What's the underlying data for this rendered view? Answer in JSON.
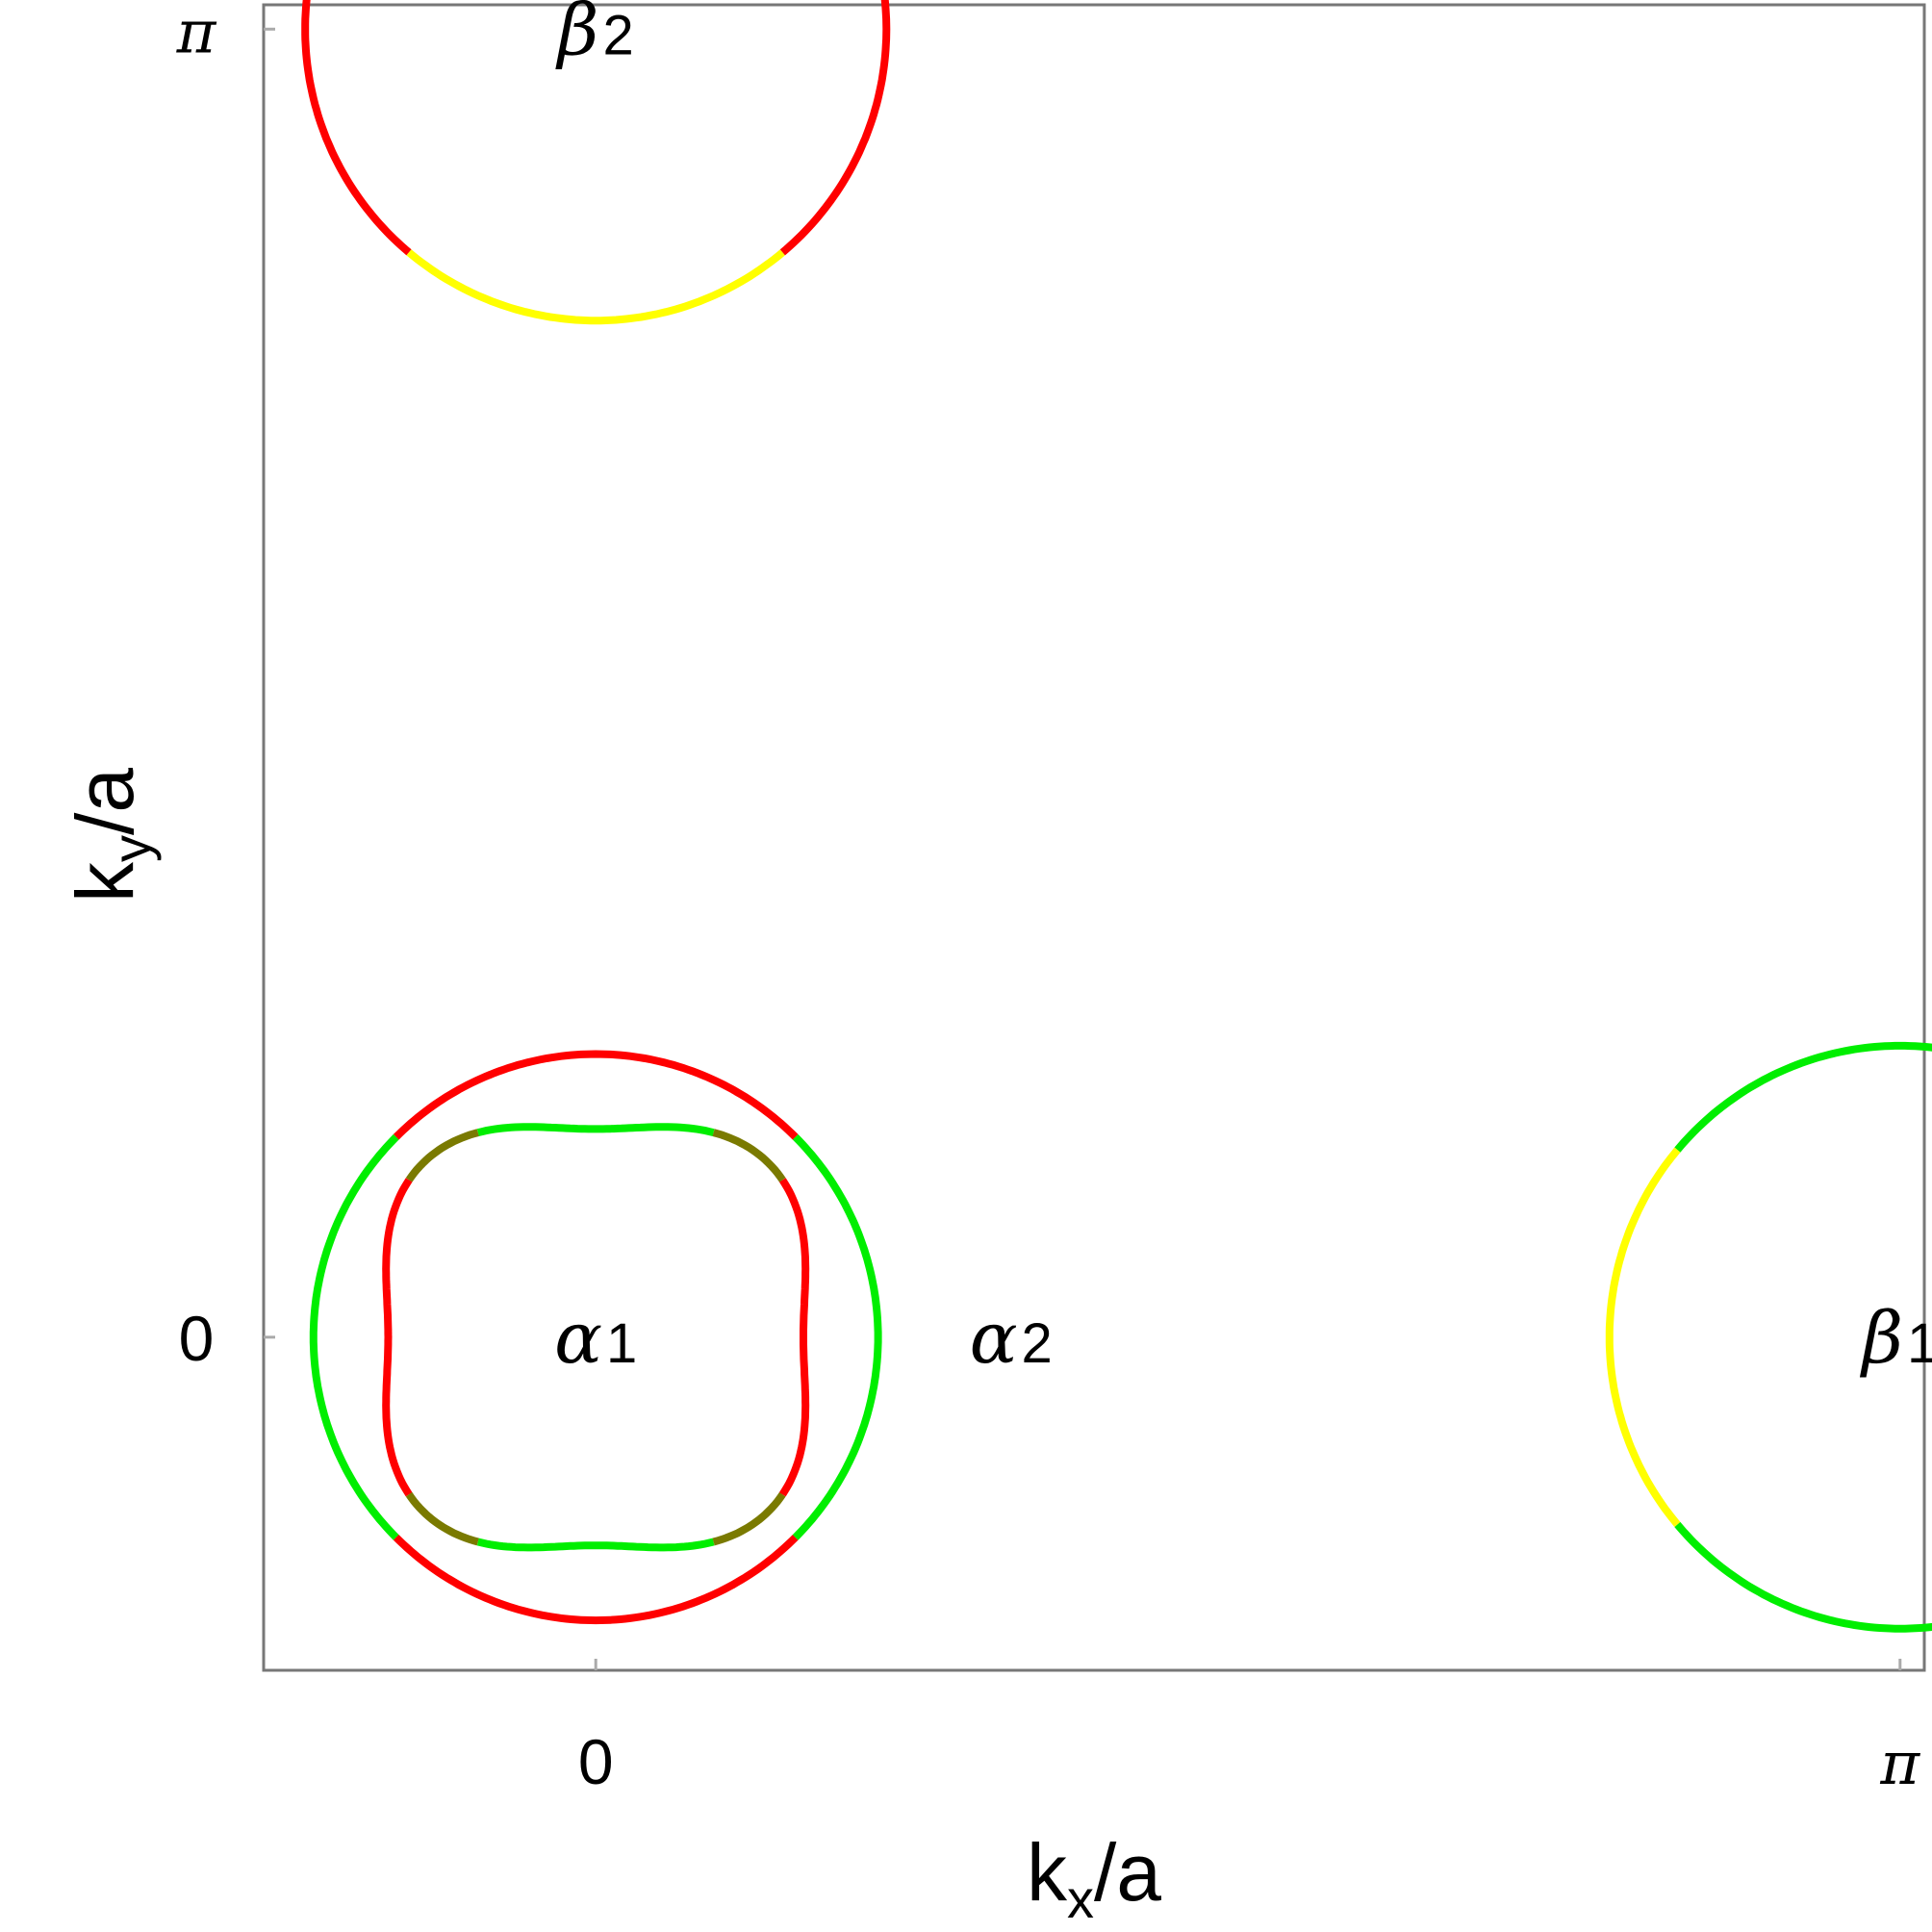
{
  "chart_data": {
    "type": "scatter",
    "xlabel": {
      "main": "k",
      "sub": "x",
      "rest": "/a"
    },
    "ylabel": {
      "main": "k",
      "sub": "y",
      "rest": "/a"
    },
    "xlim": [
      -0.8,
      3.2
    ],
    "ylim": [
      -0.8,
      3.2
    ],
    "xticks": [
      {
        "value": 0,
        "label": "0"
      },
      {
        "value": 3.1416,
        "label": "π"
      }
    ],
    "yticks": [
      {
        "value": 0,
        "label": "0"
      },
      {
        "value": 3.1416,
        "label": "π"
      }
    ],
    "grid": false,
    "colors": {
      "red": "#ff0000",
      "green": "#00ee00",
      "yellow": "#ffff00",
      "olive": "#7a7a00"
    },
    "pockets": [
      {
        "label": "β",
        "sub": "2",
        "center": [
          0,
          3.1416
        ],
        "rx": 0.7,
        "ry": 0.7,
        "label_pos": [
          0,
          3.1416
        ],
        "segments": [
          {
            "color": "red",
            "from": 130,
            "to": 230
          },
          {
            "color": "yellow",
            "from": 230,
            "to": 310
          },
          {
            "color": "red",
            "from": 310,
            "to": 410
          },
          {
            "color": "yellow",
            "from": 410,
            "to": 490
          }
        ]
      },
      {
        "label": "α",
        "sub": "2",
        "center": [
          0,
          0
        ],
        "rx": 0.68,
        "ry": 0.68,
        "label_pos": [
          1.0,
          0
        ],
        "segments": [
          {
            "color": "red",
            "from": 45,
            "to": 135
          },
          {
            "color": "green",
            "from": 135,
            "to": 225
          },
          {
            "color": "red",
            "from": 225,
            "to": 315
          },
          {
            "color": "green",
            "from": 315,
            "to": 405
          }
        ]
      },
      {
        "label": "α",
        "sub": "1",
        "center": [
          0,
          0
        ],
        "rx": 0.5,
        "ry": 0.5,
        "squareness": 0.18,
        "label_pos": [
          0,
          0
        ],
        "segments": [
          {
            "color": "green",
            "from": 60,
            "to": 120
          },
          {
            "color": "olive",
            "from": 120,
            "to": 140
          },
          {
            "color": "red",
            "from": 140,
            "to": 220
          },
          {
            "color": "olive",
            "from": 220,
            "to": 240
          },
          {
            "color": "green",
            "from": 240,
            "to": 300
          },
          {
            "color": "olive",
            "from": 300,
            "to": 320
          },
          {
            "color": "red",
            "from": 320,
            "to": 400
          },
          {
            "color": "olive",
            "from": 400,
            "to": 420
          }
        ]
      },
      {
        "label": "β",
        "sub": "1",
        "center": [
          3.1416,
          0
        ],
        "rx": 0.7,
        "ry": 0.7,
        "label_pos": [
          3.1416,
          0
        ],
        "segments": [
          {
            "color": "green",
            "from": 40,
            "to": 140
          },
          {
            "color": "yellow",
            "from": 140,
            "to": 220
          },
          {
            "color": "green",
            "from": 220,
            "to": 320
          },
          {
            "color": "yellow",
            "from": 320,
            "to": 400
          }
        ]
      }
    ]
  }
}
